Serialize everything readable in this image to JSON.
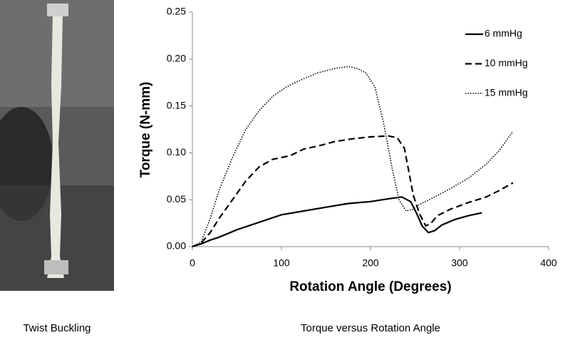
{
  "chart_data": {
    "type": "line",
    "xlabel": "Rotation Angle (Degrees)",
    "ylabel": "Torque (N-mm)",
    "xlim": [
      0,
      400
    ],
    "xticks": [
      0,
      100,
      200,
      300,
      400
    ],
    "ylim": [
      0,
      0.25
    ],
    "yticks": [
      {
        "value": 0,
        "label": "0.00"
      },
      {
        "value": 0.05,
        "label": "0.05"
      },
      {
        "value": 0.1,
        "label": "0.10"
      },
      {
        "value": 0.15,
        "label": "0.15"
      },
      {
        "value": 0.2,
        "label": "0.20"
      },
      {
        "value": 0.25,
        "label": "0.25"
      }
    ],
    "grid": false,
    "legend": "top-right",
    "series": [
      {
        "name": "6 mmHg",
        "color": "#000000",
        "style": "solid",
        "x": [
          0,
          10,
          20,
          30,
          50,
          75,
          100,
          125,
          150,
          175,
          200,
          220,
          235,
          245,
          252,
          258,
          265,
          272,
          280,
          295,
          310,
          325
        ],
        "values": [
          0,
          0.003,
          0.007,
          0.01,
          0.018,
          0.026,
          0.034,
          0.038,
          0.042,
          0.046,
          0.048,
          0.051,
          0.053,
          0.048,
          0.035,
          0.022,
          0.015,
          0.017,
          0.023,
          0.029,
          0.033,
          0.036
        ]
      },
      {
        "name": "10 mmHg",
        "color": "#000000",
        "style": "dashed",
        "x": [
          0,
          10,
          20,
          30,
          45,
          60,
          75,
          90,
          110,
          125,
          140,
          160,
          180,
          200,
          220,
          230,
          238,
          243,
          248,
          255,
          262,
          268,
          275,
          290,
          310,
          330,
          345,
          360
        ],
        "values": [
          0,
          0.004,
          0.015,
          0.03,
          0.05,
          0.07,
          0.085,
          0.093,
          0.097,
          0.104,
          0.107,
          0.112,
          0.115,
          0.117,
          0.118,
          0.116,
          0.105,
          0.08,
          0.055,
          0.035,
          0.022,
          0.025,
          0.033,
          0.04,
          0.047,
          0.053,
          0.06,
          0.068
        ]
      },
      {
        "name": "15 mmHg",
        "color": "#000000",
        "style": "dotted",
        "x": [
          0,
          10,
          20,
          30,
          45,
          60,
          75,
          90,
          105,
          120,
          140,
          160,
          175,
          185,
          195,
          205,
          215,
          225,
          232,
          240,
          248,
          255,
          270,
          290,
          310,
          330,
          345,
          360
        ],
        "values": [
          0,
          0.005,
          0.03,
          0.06,
          0.095,
          0.125,
          0.145,
          0.16,
          0.17,
          0.177,
          0.185,
          0.19,
          0.192,
          0.19,
          0.185,
          0.17,
          0.13,
          0.08,
          0.05,
          0.038,
          0.04,
          0.045,
          0.052,
          0.062,
          0.073,
          0.088,
          0.103,
          0.123
        ]
      }
    ]
  },
  "captions": [
    "Twist Buckling",
    "Torque versus Rotation Angle"
  ]
}
